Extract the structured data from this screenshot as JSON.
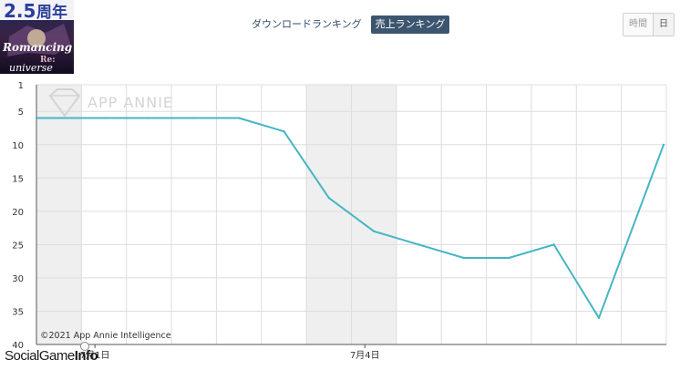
{
  "app": {
    "icon_name": "app-icon-romancing-saga-re-universe"
  },
  "tabs": [
    {
      "label": "ダウンロードランキング",
      "active": false
    },
    {
      "label": "売上ランキング",
      "active": true
    }
  ],
  "period_toggle": [
    {
      "label": "時間",
      "active": false
    },
    {
      "label": "日",
      "active": true
    }
  ],
  "watermark": "APP ANNIE",
  "copyright": "©2021 App Annie Intelligence",
  "source_logo": {
    "light": "SocialGame",
    "bold": "Info"
  },
  "colors": {
    "line": "#45b5c4",
    "band": "#efefef",
    "grid": "#dddddd"
  },
  "chart_data": {
    "type": "line",
    "title": "",
    "xlabel": "",
    "ylabel": "",
    "inverted_y": true,
    "ylim": [
      1,
      40
    ],
    "yticks": [
      1,
      5,
      10,
      15,
      20,
      25,
      30,
      35,
      40
    ],
    "grid": true,
    "x_tick_labels": [
      {
        "index": 1,
        "label": "7月1日"
      },
      {
        "index": 7,
        "label": "7月4日"
      }
    ],
    "series": [
      {
        "values": [
          6,
          6,
          6,
          6,
          6,
          8,
          18,
          23,
          25,
          27,
          27,
          25,
          36,
          10
        ]
      }
    ],
    "shaded_bands": [
      [
        0,
        1
      ],
      [
        6,
        8
      ]
    ]
  }
}
